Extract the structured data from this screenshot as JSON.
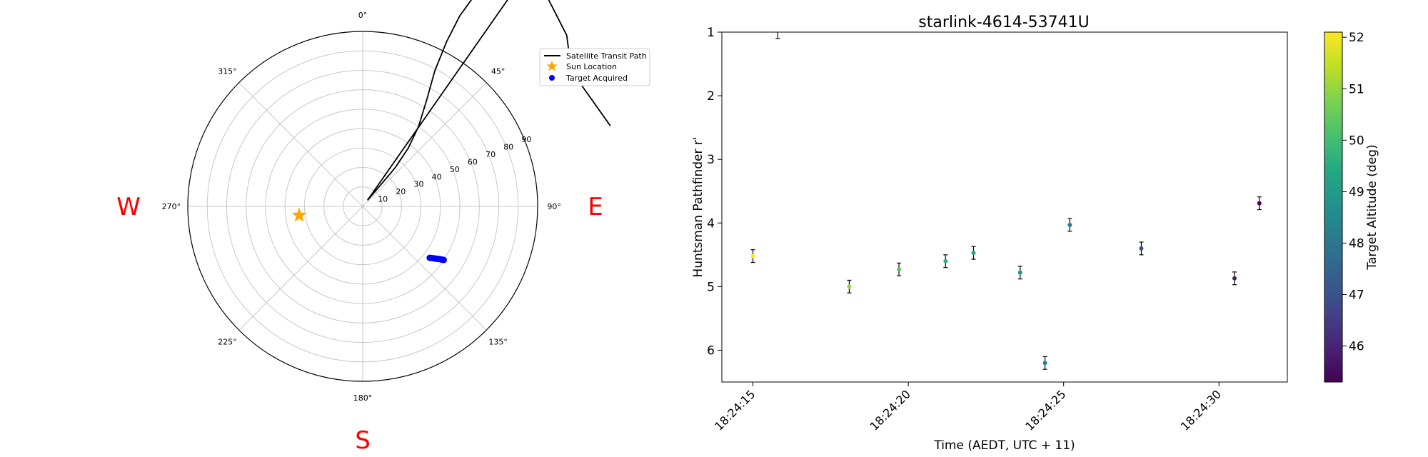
{
  "chart_data": [
    {
      "type": "scatter",
      "subtype": "polar-sky-plot",
      "title": "",
      "theta_zero": "top",
      "theta_direction": "clockwise",
      "theta_ticks": [
        "0°",
        "45°",
        "90°",
        "135°",
        "180°",
        "225°",
        "270°",
        "315°"
      ],
      "radial_axis": "zenith-centered, 0 at center, 90 at edge",
      "r_ticks": [
        "10",
        "20",
        "30",
        "40",
        "50",
        "60",
        "70",
        "80",
        "90"
      ],
      "compass": {
        "west": "W",
        "east": "E",
        "south": "S"
      },
      "compass_color": "#ff0000",
      "legend": {
        "placement": "upper-right outside",
        "entries": [
          "Satellite Transit Path",
          "Sun Location",
          "Target Acquired"
        ]
      },
      "transit_path": {
        "name": "Satellite Transit Path",
        "color": "#000000",
        "points": [
          [
            0,
            320
          ],
          [
            5,
            320
          ],
          [
            10,
            322
          ],
          [
            15,
            325
          ],
          [
            20,
            330
          ],
          [
            26,
            337
          ],
          [
            31,
            345
          ],
          [
            35,
            354
          ],
          [
            38,
            4
          ],
          [
            40,
            15
          ],
          [
            40,
            26
          ],
          [
            38,
            38
          ],
          [
            35,
            50
          ],
          [
            31,
            64
          ],
          [
            28,
            79
          ],
          [
            27,
            95
          ],
          [
            27,
            110
          ],
          [
            28,
            124
          ],
          [
            30,
            135
          ],
          [
            34,
            143
          ],
          [
            40,
            145
          ],
          [
            50,
            137
          ],
          [
            57,
            128
          ],
          [
            72,
            134
          ]
        ]
      },
      "sun_location": {
        "name": "Sun Location",
        "az": 262,
        "r": 33,
        "color": "#ffa500"
      },
      "targets": {
        "name": "Target Acquired",
        "color": "#0000ff",
        "points": [
          [
            123.5,
            50
          ],
          [
            123.7,
            49.5
          ],
          [
            124,
            48.9
          ],
          [
            124.3,
            48.3
          ],
          [
            124.6,
            47.7
          ],
          [
            125,
            47.1
          ],
          [
            125.4,
            46.5
          ],
          [
            125.8,
            45.9
          ],
          [
            126.2,
            45.3
          ],
          [
            126.6,
            44.7
          ],
          [
            127,
            44.1
          ],
          [
            127.5,
            43.5
          ]
        ]
      }
    },
    {
      "type": "scatter",
      "title": "starlink-4614-53741U",
      "xlabel": "Time (AEDT, UTC + 11)",
      "ylabel": "Huntsman Pathfinder r'",
      "xlim": [
        "18:24:14.0",
        "18:24:32.2"
      ],
      "ylim": [
        6.5,
        1
      ],
      "y_inverted": true,
      "x_ticks": [
        "18:24:15",
        "18:24:20",
        "18:24:25",
        "18:24:30"
      ],
      "y_ticks": [
        "1",
        "2",
        "3",
        "4",
        "5",
        "6"
      ],
      "colorbar": {
        "label": "Target Altitude (deg)",
        "range": [
          45.3,
          52.1
        ],
        "ticks": [
          "46",
          "47",
          "48",
          "49",
          "50",
          "51",
          "52"
        ],
        "colormap": "viridis"
      },
      "points": [
        {
          "t": "18:24:15.0",
          "mag": 4.52,
          "err": 0.1,
          "alt": 52.1
        },
        {
          "t": "18:24:18.1",
          "mag": 5.0,
          "err": 0.1,
          "alt": 51.0
        },
        {
          "t": "18:24:19.7",
          "mag": 4.73,
          "err": 0.1,
          "alt": 50.3
        },
        {
          "t": "18:24:21.2",
          "mag": 4.6,
          "err": 0.1,
          "alt": 49.6
        },
        {
          "t": "18:24:22.1",
          "mag": 4.47,
          "err": 0.1,
          "alt": 49.3
        },
        {
          "t": "18:24:23.6",
          "mag": 4.78,
          "err": 0.1,
          "alt": 48.7
        },
        {
          "t": "18:24:24.4",
          "mag": 6.2,
          "err": 0.1,
          "alt": 48.3
        },
        {
          "t": "18:24:25.2",
          "mag": 4.03,
          "err": 0.1,
          "alt": 48.0
        },
        {
          "t": "18:24:27.5",
          "mag": 4.4,
          "err": 0.1,
          "alt": 47.0
        },
        {
          "t": "18:24:30.5",
          "mag": 4.87,
          "err": 0.1,
          "alt": 45.9
        },
        {
          "t": "18:24:31.3",
          "mag": 3.69,
          "err": 0.1,
          "alt": 45.4
        }
      ],
      "partial_marker": {
        "t": "18:24:15.8",
        "mag": 1.0,
        "err": 0.1
      }
    }
  ]
}
